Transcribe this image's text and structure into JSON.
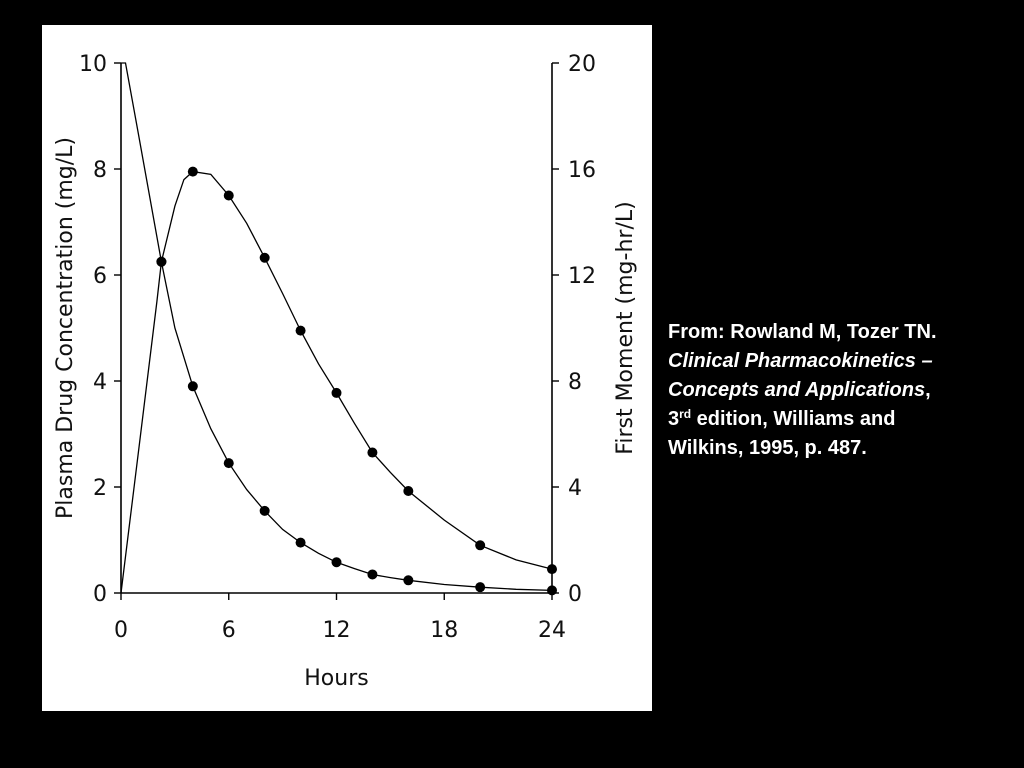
{
  "chart_data": {
    "type": "line",
    "xlabel": "Hours",
    "ylabel": "Plasma Drug Concentration (mg/L)",
    "y2label": "First Moment (mg-hr/L)",
    "xlim": [
      0,
      24
    ],
    "ylim": [
      0,
      10
    ],
    "y2lim": [
      0,
      20
    ],
    "xticks": [
      "0",
      "6",
      "12",
      "18",
      "24"
    ],
    "yticks": [
      "0",
      "2",
      "4",
      "6",
      "8",
      "10"
    ],
    "y2ticks": [
      "0",
      "4",
      "8",
      "12",
      "16",
      "20"
    ],
    "grid": false,
    "series": [
      {
        "axis": "left",
        "x": [
          0,
          0.25,
          2.25,
          4,
          6,
          8,
          10,
          12,
          14,
          16,
          20,
          24
        ],
        "values": [
          10,
          10,
          6.25,
          3.9,
          2.45,
          1.55,
          0.95,
          0.58,
          0.35,
          0.24,
          0.11,
          0.05
        ],
        "curve": [
          [
            0,
            10
          ],
          [
            0.25,
            10
          ],
          [
            1,
            8.6
          ],
          [
            2.25,
            6.25
          ],
          [
            3,
            5.0
          ],
          [
            4,
            3.9
          ],
          [
            5,
            3.1
          ],
          [
            6,
            2.45
          ],
          [
            7,
            1.95
          ],
          [
            8,
            1.55
          ],
          [
            9,
            1.2
          ],
          [
            10,
            0.95
          ],
          [
            11,
            0.75
          ],
          [
            12,
            0.58
          ],
          [
            13,
            0.46
          ],
          [
            14,
            0.35
          ],
          [
            15,
            0.29
          ],
          [
            16,
            0.24
          ],
          [
            18,
            0.16
          ],
          [
            20,
            0.11
          ],
          [
            22,
            0.07
          ],
          [
            24,
            0.05
          ]
        ]
      },
      {
        "axis": "right",
        "x": [
          2.25,
          4,
          6,
          8,
          10,
          12,
          14,
          16,
          20,
          24
        ],
        "values": [
          12.5,
          15.9,
          15.0,
          12.65,
          9.9,
          7.55,
          5.3,
          3.85,
          1.8,
          0.9
        ],
        "curve": [
          [
            0,
            0
          ],
          [
            1,
            5.5
          ],
          [
            2,
            11.0
          ],
          [
            2.25,
            12.5
          ],
          [
            3,
            14.6
          ],
          [
            3.5,
            15.6
          ],
          [
            4,
            15.9
          ],
          [
            5,
            15.8
          ],
          [
            6,
            15.0
          ],
          [
            7,
            13.95
          ],
          [
            8,
            12.65
          ],
          [
            9,
            11.3
          ],
          [
            10,
            9.9
          ],
          [
            11,
            8.65
          ],
          [
            12,
            7.55
          ],
          [
            13,
            6.4
          ],
          [
            14,
            5.3
          ],
          [
            15,
            4.55
          ],
          [
            16,
            3.85
          ],
          [
            18,
            2.75
          ],
          [
            20,
            1.8
          ],
          [
            22,
            1.25
          ],
          [
            24,
            0.9
          ]
        ]
      }
    ]
  },
  "citation": {
    "line1": "From: Rowland M, Tozer TN.",
    "line2": "Clinical Pharmacokinetics –",
    "line3": "Concepts and Applications",
    "line3_comma": ",",
    "line4_num": "3",
    "line4_sup": "rd",
    "line4_rest": " edition, Williams and",
    "line5": "Wilkins, 1995, p. 487."
  }
}
